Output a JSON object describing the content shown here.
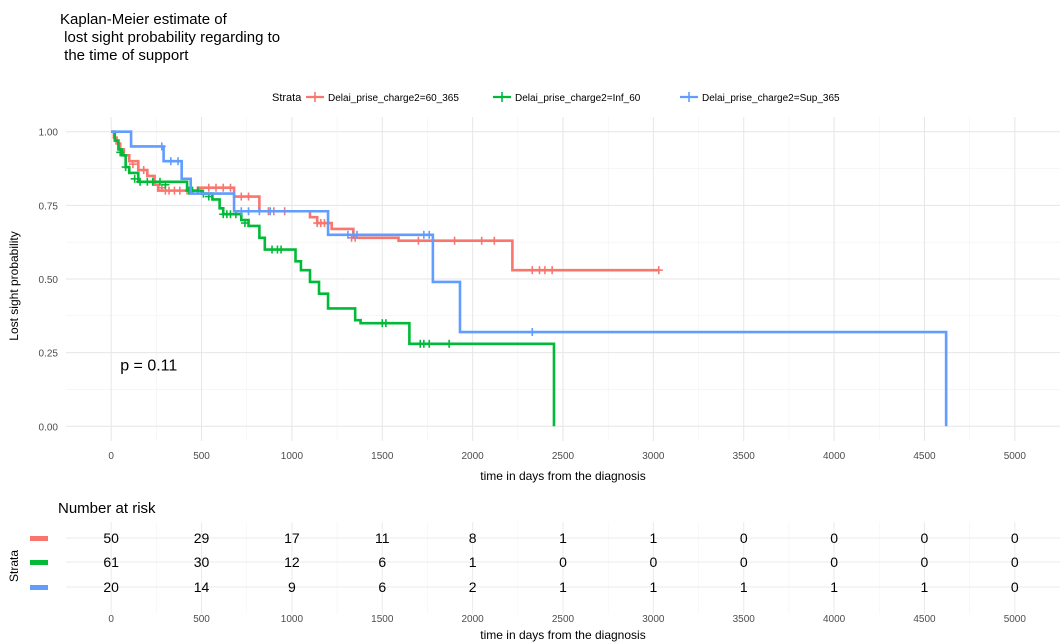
{
  "chart_data": {
    "type": "line",
    "title_lines": [
      "Kaplan-Meier estimate of",
      " lost sight probability regarding to",
      " the time of support"
    ],
    "xlabel": "time in days from the diagnosis",
    "ylabel": "Lost sight probability",
    "xlim": [
      -250,
      5250
    ],
    "ylim": [
      -0.05,
      1.05
    ],
    "x_ticks": [
      0,
      500,
      1000,
      1500,
      2000,
      2500,
      3000,
      3500,
      4000,
      4500,
      5000
    ],
    "x_tick_labels": [
      "0",
      "500",
      "1000",
      "1500",
      "2000",
      "2500",
      "3000",
      "3500",
      "4000",
      "4500",
      "5000"
    ],
    "y_ticks": [
      0,
      0.25,
      0.5,
      0.75,
      1.0
    ],
    "y_tick_labels": [
      "0.00",
      "0.25",
      "0.50",
      "0.75",
      "1.00"
    ],
    "grid": true,
    "legend_title": "Strata",
    "legend_position": "top",
    "annotation": "p = 0.11",
    "annotation_at": [
      50,
      0.19
    ],
    "series": [
      {
        "name": "Delai_prise_charge2=60_365",
        "color": "#F8766D",
        "steps": [
          [
            0,
            1.0
          ],
          [
            15,
            0.98
          ],
          [
            30,
            0.96
          ],
          [
            50,
            0.94
          ],
          [
            70,
            0.92
          ],
          [
            100,
            0.9
          ],
          [
            150,
            0.87
          ],
          [
            200,
            0.85
          ],
          [
            240,
            0.82
          ],
          [
            260,
            0.8
          ],
          [
            460,
            0.8
          ],
          [
            480,
            0.81
          ],
          [
            680,
            0.78
          ],
          [
            820,
            0.73
          ],
          [
            1100,
            0.71
          ],
          [
            1140,
            0.69
          ],
          [
            1220,
            0.67
          ],
          [
            1340,
            0.64
          ],
          [
            1350,
            0.64
          ],
          [
            1520,
            0.64
          ],
          [
            1590,
            0.63
          ],
          [
            2220,
            0.53
          ],
          [
            3030,
            0.53
          ]
        ],
        "censors": [
          [
            120,
            0.89
          ],
          [
            180,
            0.87
          ],
          [
            280,
            0.81
          ],
          [
            300,
            0.8
          ],
          [
            320,
            0.8
          ],
          [
            350,
            0.8
          ],
          [
            380,
            0.8
          ],
          [
            420,
            0.8
          ],
          [
            540,
            0.81
          ],
          [
            580,
            0.81
          ],
          [
            620,
            0.81
          ],
          [
            660,
            0.81
          ],
          [
            720,
            0.78
          ],
          [
            760,
            0.78
          ],
          [
            870,
            0.73
          ],
          [
            900,
            0.73
          ],
          [
            960,
            0.73
          ],
          [
            1140,
            0.69
          ],
          [
            1160,
            0.69
          ],
          [
            1180,
            0.69
          ],
          [
            1330,
            0.64
          ],
          [
            1350,
            0.64
          ],
          [
            1700,
            0.63
          ],
          [
            1900,
            0.63
          ],
          [
            2050,
            0.63
          ],
          [
            2120,
            0.63
          ],
          [
            2330,
            0.53
          ],
          [
            2370,
            0.53
          ],
          [
            2400,
            0.53
          ],
          [
            2440,
            0.53
          ],
          [
            3030,
            0.53
          ]
        ]
      },
      {
        "name": "Delai_prise_charge2=Inf_60",
        "color": "#00BA38",
        "steps": [
          [
            0,
            1.0
          ],
          [
            20,
            0.97
          ],
          [
            40,
            0.94
          ],
          [
            60,
            0.92
          ],
          [
            80,
            0.88
          ],
          [
            100,
            0.86
          ],
          [
            150,
            0.83
          ],
          [
            300,
            0.83
          ],
          [
            420,
            0.8
          ],
          [
            470,
            0.8
          ],
          [
            500,
            0.79
          ],
          [
            560,
            0.77
          ],
          [
            600,
            0.74
          ],
          [
            620,
            0.72
          ],
          [
            670,
            0.72
          ],
          [
            720,
            0.7
          ],
          [
            760,
            0.68
          ],
          [
            820,
            0.64
          ],
          [
            850,
            0.6
          ],
          [
            1020,
            0.56
          ],
          [
            1050,
            0.53
          ],
          [
            1100,
            0.49
          ],
          [
            1150,
            0.45
          ],
          [
            1200,
            0.4
          ],
          [
            1350,
            0.36
          ],
          [
            1380,
            0.35
          ],
          [
            1500,
            0.35
          ],
          [
            1650,
            0.28
          ],
          [
            2450,
            0.28
          ],
          [
            2450,
            0.0
          ]
        ],
        "censors": [
          [
            50,
            0.93
          ],
          [
            80,
            0.88
          ],
          [
            130,
            0.84
          ],
          [
            160,
            0.83
          ],
          [
            200,
            0.83
          ],
          [
            230,
            0.83
          ],
          [
            270,
            0.83
          ],
          [
            300,
            0.82
          ],
          [
            430,
            0.8
          ],
          [
            450,
            0.8
          ],
          [
            480,
            0.8
          ],
          [
            510,
            0.79
          ],
          [
            540,
            0.78
          ],
          [
            620,
            0.72
          ],
          [
            640,
            0.72
          ],
          [
            660,
            0.72
          ],
          [
            690,
            0.72
          ],
          [
            740,
            0.69
          ],
          [
            890,
            0.6
          ],
          [
            920,
            0.6
          ],
          [
            940,
            0.6
          ],
          [
            1500,
            0.35
          ],
          [
            1520,
            0.35
          ],
          [
            1710,
            0.28
          ],
          [
            1730,
            0.28
          ],
          [
            1760,
            0.28
          ],
          [
            1870,
            0.28
          ]
        ]
      },
      {
        "name": "Delai_prise_charge2=Sup_365",
        "color": "#619CFF",
        "steps": [
          [
            0,
            1.0
          ],
          [
            110,
            0.95
          ],
          [
            290,
            0.9
          ],
          [
            390,
            0.84
          ],
          [
            440,
            0.79
          ],
          [
            680,
            0.73
          ],
          [
            1050,
            0.73
          ],
          [
            1200,
            0.65
          ],
          [
            1330,
            0.65
          ],
          [
            1780,
            0.49
          ],
          [
            1930,
            0.32
          ],
          [
            4620,
            0.32
          ],
          [
            4620,
            0.0
          ]
        ],
        "censors": [
          [
            280,
            0.95
          ],
          [
            330,
            0.9
          ],
          [
            370,
            0.9
          ],
          [
            720,
            0.73
          ],
          [
            760,
            0.73
          ],
          [
            820,
            0.73
          ],
          [
            880,
            0.73
          ],
          [
            1310,
            0.65
          ],
          [
            1340,
            0.65
          ],
          [
            1360,
            0.65
          ],
          [
            1730,
            0.65
          ],
          [
            1760,
            0.65
          ],
          [
            2330,
            0.32
          ]
        ]
      }
    ],
    "risk_table": {
      "title": "Number at risk",
      "ylabel": "Strata",
      "xlabel": "time in days from the diagnosis",
      "times": [
        0,
        500,
        1000,
        1500,
        2000,
        2500,
        3000,
        3500,
        4000,
        4500,
        5000
      ],
      "rows": [
        {
          "name": "Delai_prise_charge2=60_365",
          "color": "#F8766D",
          "values": [
            50,
            29,
            17,
            11,
            8,
            1,
            1,
            0,
            0,
            0,
            0
          ]
        },
        {
          "name": "Delai_prise_charge2=Inf_60",
          "color": "#00BA38",
          "values": [
            61,
            30,
            12,
            6,
            1,
            0,
            0,
            0,
            0,
            0,
            0
          ]
        },
        {
          "name": "Delai_prise_charge2=Sup_365",
          "color": "#619CFF",
          "values": [
            20,
            14,
            9,
            6,
            2,
            1,
            1,
            1,
            1,
            1,
            0
          ]
        }
      ]
    }
  }
}
